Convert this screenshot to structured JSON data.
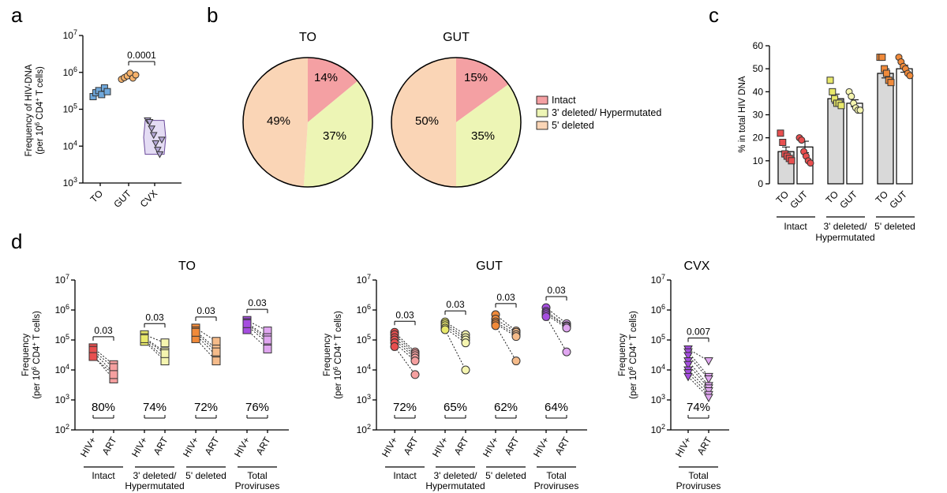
{
  "panel_labels": {
    "a": "a",
    "b": "b",
    "c": "c",
    "d": "d"
  },
  "colors": {
    "to_blue": "#6fa8dc",
    "gut_orange": "#f6b26b",
    "cvx_purple": "#b4a7d6",
    "intact": "#f4a0a3",
    "deleted3": "#edf5b5",
    "deleted5": "#fad5b6",
    "red": "#e84f4f",
    "yellow": "#e8e86b",
    "orange": "#f08a3a",
    "purple": "#a64ee0",
    "red_light": "#f5a0a0",
    "yellow_light": "#f5f5b0",
    "orange_light": "#f5bb8a",
    "purple_light": "#e0a6f0",
    "grey_bar": "#d9d9d9"
  },
  "chart_data": [
    {
      "id": "a",
      "type": "scatter",
      "yscale": "log",
      "ylabel_line1": "Frequency of HIV-DNA",
      "ylabel_line2_pre": "(per 10",
      "ylabel_line2_sup": "6",
      "ylabel_line2_post": " CD4",
      "ylabel_line2_sup2": "+",
      "ylabel_line2_post2": " T cells)",
      "yticks": [
        {
          "base": "10",
          "exp": "3",
          "value": 1000
        },
        {
          "base": "10",
          "exp": "4",
          "value": 10000
        },
        {
          "base": "10",
          "exp": "5",
          "value": 100000
        },
        {
          "base": "10",
          "exp": "6",
          "value": 1000000
        },
        {
          "base": "10",
          "exp": "7",
          "value": 10000000
        }
      ],
      "ylim": [
        1000,
        10000000
      ],
      "categories": [
        "TO",
        "GUT",
        "CVX"
      ],
      "series": [
        {
          "name": "TO",
          "marker": "square",
          "values": [
            220000,
            280000,
            320000,
            250000,
            380000,
            300000
          ]
        },
        {
          "name": "GUT",
          "marker": "circle",
          "values": [
            650000,
            720000,
            800000,
            950000,
            700000,
            850000
          ]
        },
        {
          "name": "CVX",
          "marker": "triangle",
          "values": [
            50000,
            45000,
            30000,
            20000,
            12000,
            8000,
            6000,
            15000
          ]
        }
      ],
      "annotation": {
        "text": "0.0001",
        "from": "GUT",
        "to": "CVX"
      }
    },
    {
      "id": "b",
      "type": "pie",
      "pies": [
        {
          "title": "TO",
          "slices": [
            {
              "name": "Intact",
              "value": 14,
              "label": "14%"
            },
            {
              "name": "3' deleted/ Hypermutated",
              "value": 37,
              "label": "37%"
            },
            {
              "name": "5' deleted",
              "value": 49,
              "label": "49%"
            }
          ]
        },
        {
          "title": "GUT",
          "slices": [
            {
              "name": "Intact",
              "value": 15,
              "label": "15%"
            },
            {
              "name": "3' deleted/ Hypermutated",
              "value": 35,
              "label": "35%"
            },
            {
              "name": "5' deleted",
              "value": 50,
              "label": "50%"
            }
          ]
        }
      ],
      "legend": [
        "Intact",
        "3' deleted/ Hypermutated",
        "5' deleted"
      ]
    },
    {
      "id": "c",
      "type": "bar",
      "ylabel": "% in total HIV DNA",
      "ylim": [
        0,
        60
      ],
      "yticks": [
        "0",
        "10",
        "20",
        "30",
        "40",
        "50",
        "60"
      ],
      "groups": [
        {
          "label_lines": [
            "Intact"
          ],
          "bars": [
            {
              "name": "TO",
              "mean": 14,
              "sem": 2,
              "points": [
                22,
                18,
                13,
                12,
                11,
                10
              ]
            },
            {
              "name": "GUT",
              "mean": 16,
              "sem": 2.5,
              "points": [
                20,
                19,
                14,
                12,
                10,
                9
              ]
            }
          ]
        },
        {
          "label_lines": [
            "3' deleted/",
            "Hypermutated"
          ],
          "bars": [
            {
              "name": "TO",
              "mean": 37,
              "sem": 2,
              "points": [
                45,
                40,
                37,
                35,
                35,
                34
              ]
            },
            {
              "name": "GUT",
              "mean": 35,
              "sem": 1.5,
              "points": [
                40,
                38,
                35,
                33,
                32,
                32
              ]
            }
          ]
        },
        {
          "label_lines": [
            "5' deleted"
          ],
          "bars": [
            {
              "name": "TO",
              "mean": 48,
              "sem": 2,
              "points": [
                55,
                55,
                50,
                48,
                45,
                44
              ]
            },
            {
              "name": "GUT",
              "mean": 50,
              "sem": 1.5,
              "points": [
                55,
                53,
                51,
                50,
                48,
                47
              ]
            }
          ]
        }
      ]
    },
    {
      "id": "d",
      "type": "paired-scatter",
      "yscale": "log",
      "ylabel_line1": "Frequency",
      "ylabel_line2_pre": "(per 10",
      "ylabel_line2_sup": "6",
      "ylabel_line2_post": " CD4",
      "ylabel_line2_sup2": "+",
      "ylabel_line2_post2": " T cells)",
      "yticks": [
        {
          "base": "10",
          "exp": "2",
          "value": 100
        },
        {
          "base": "10",
          "exp": "3",
          "value": 1000
        },
        {
          "base": "10",
          "exp": "4",
          "value": 10000
        },
        {
          "base": "10",
          "exp": "5",
          "value": 100000
        },
        {
          "base": "10",
          "exp": "6",
          "value": 1000000
        },
        {
          "base": "10",
          "exp": "7",
          "value": 10000000
        }
      ],
      "ylim": [
        100,
        10000000
      ],
      "x_categories": [
        "HIV+",
        "ART"
      ],
      "subplots": [
        {
          "title": "TO",
          "marker": "square",
          "groups": [
            {
              "label_lines": [
                "Intact"
              ],
              "p": "0.03",
              "reduction": "80%",
              "color": "red",
              "hiv": [
                55000,
                40000,
                30000,
                45000,
                28000
              ],
              "art": [
                15000,
                8000,
                5000,
                12000,
                7000
              ]
            },
            {
              "label_lines": [
                "3' deleted/",
                "Hypermutated"
              ],
              "p": "0.03",
              "reduction": "74%",
              "color": "yellow",
              "hiv": [
                150000,
                120000,
                100000,
                90000,
                110000
              ],
              "art": [
                80000,
                40000,
                25000,
                20000,
                35000
              ]
            },
            {
              "label_lines": [
                "5' deleted"
              ],
              "p": "0.03",
              "reduction": "72%",
              "color": "orange",
              "hiv": [
                250000,
                200000,
                150000,
                110000,
                180000
              ],
              "art": [
                90000,
                50000,
                30000,
                20000,
                40000
              ]
            },
            {
              "label_lines": [
                "Total",
                "Proviruses"
              ],
              "p": "0.03",
              "reduction": "76%",
              "color": "purple",
              "hiv": [
                450000,
                380000,
                300000,
                220000,
                350000
              ],
              "art": [
                200000,
                120000,
                80000,
                50000,
                100000
              ]
            }
          ]
        },
        {
          "title": "GUT",
          "marker": "circle",
          "groups": [
            {
              "label_lines": [
                "Intact"
              ],
              "p": "0.03",
              "reduction": "72%",
              "color": "red",
              "hiv": [
                180000,
                150000,
                120000,
                100000,
                80000,
                60000
              ],
              "art": [
                40000,
                35000,
                30000,
                25000,
                20000,
                7000
              ]
            },
            {
              "label_lines": [
                "3' deleted/",
                "Hypermutated"
              ],
              "p": "0.03",
              "reduction": "65%",
              "color": "yellow",
              "hiv": [
                400000,
                350000,
                300000,
                250000,
                220000
              ],
              "art": [
                150000,
                120000,
                100000,
                80000,
                10000
              ]
            },
            {
              "label_lines": [
                "5' deleted"
              ],
              "p": "0.03",
              "reduction": "62%",
              "color": "orange",
              "hiv": [
                700000,
                500000,
                400000,
                350000,
                300000
              ],
              "art": [
                200000,
                180000,
                150000,
                130000,
                20000
              ]
            },
            {
              "label_lines": [
                "Total",
                "Proviruses"
              ],
              "p": "0.03",
              "reduction": "64%",
              "color": "purple",
              "hiv": [
                1200000,
                900000,
                800000,
                700000,
                600000
              ],
              "art": [
                350000,
                300000,
                280000,
                250000,
                40000
              ]
            }
          ]
        },
        {
          "title": "CVX",
          "marker": "triangle",
          "groups": [
            {
              "label_lines": [
                "Total",
                "Proviruses"
              ],
              "p": "0.007",
              "reduction": "74%",
              "color": "purple",
              "hiv": [
                50000,
                40000,
                30000,
                20000,
                15000,
                10000,
                8000,
                6000
              ],
              "art": [
                20000,
                6000,
                5000,
                3000,
                2500,
                2000,
                1500,
                1200
              ]
            }
          ]
        }
      ]
    }
  ]
}
